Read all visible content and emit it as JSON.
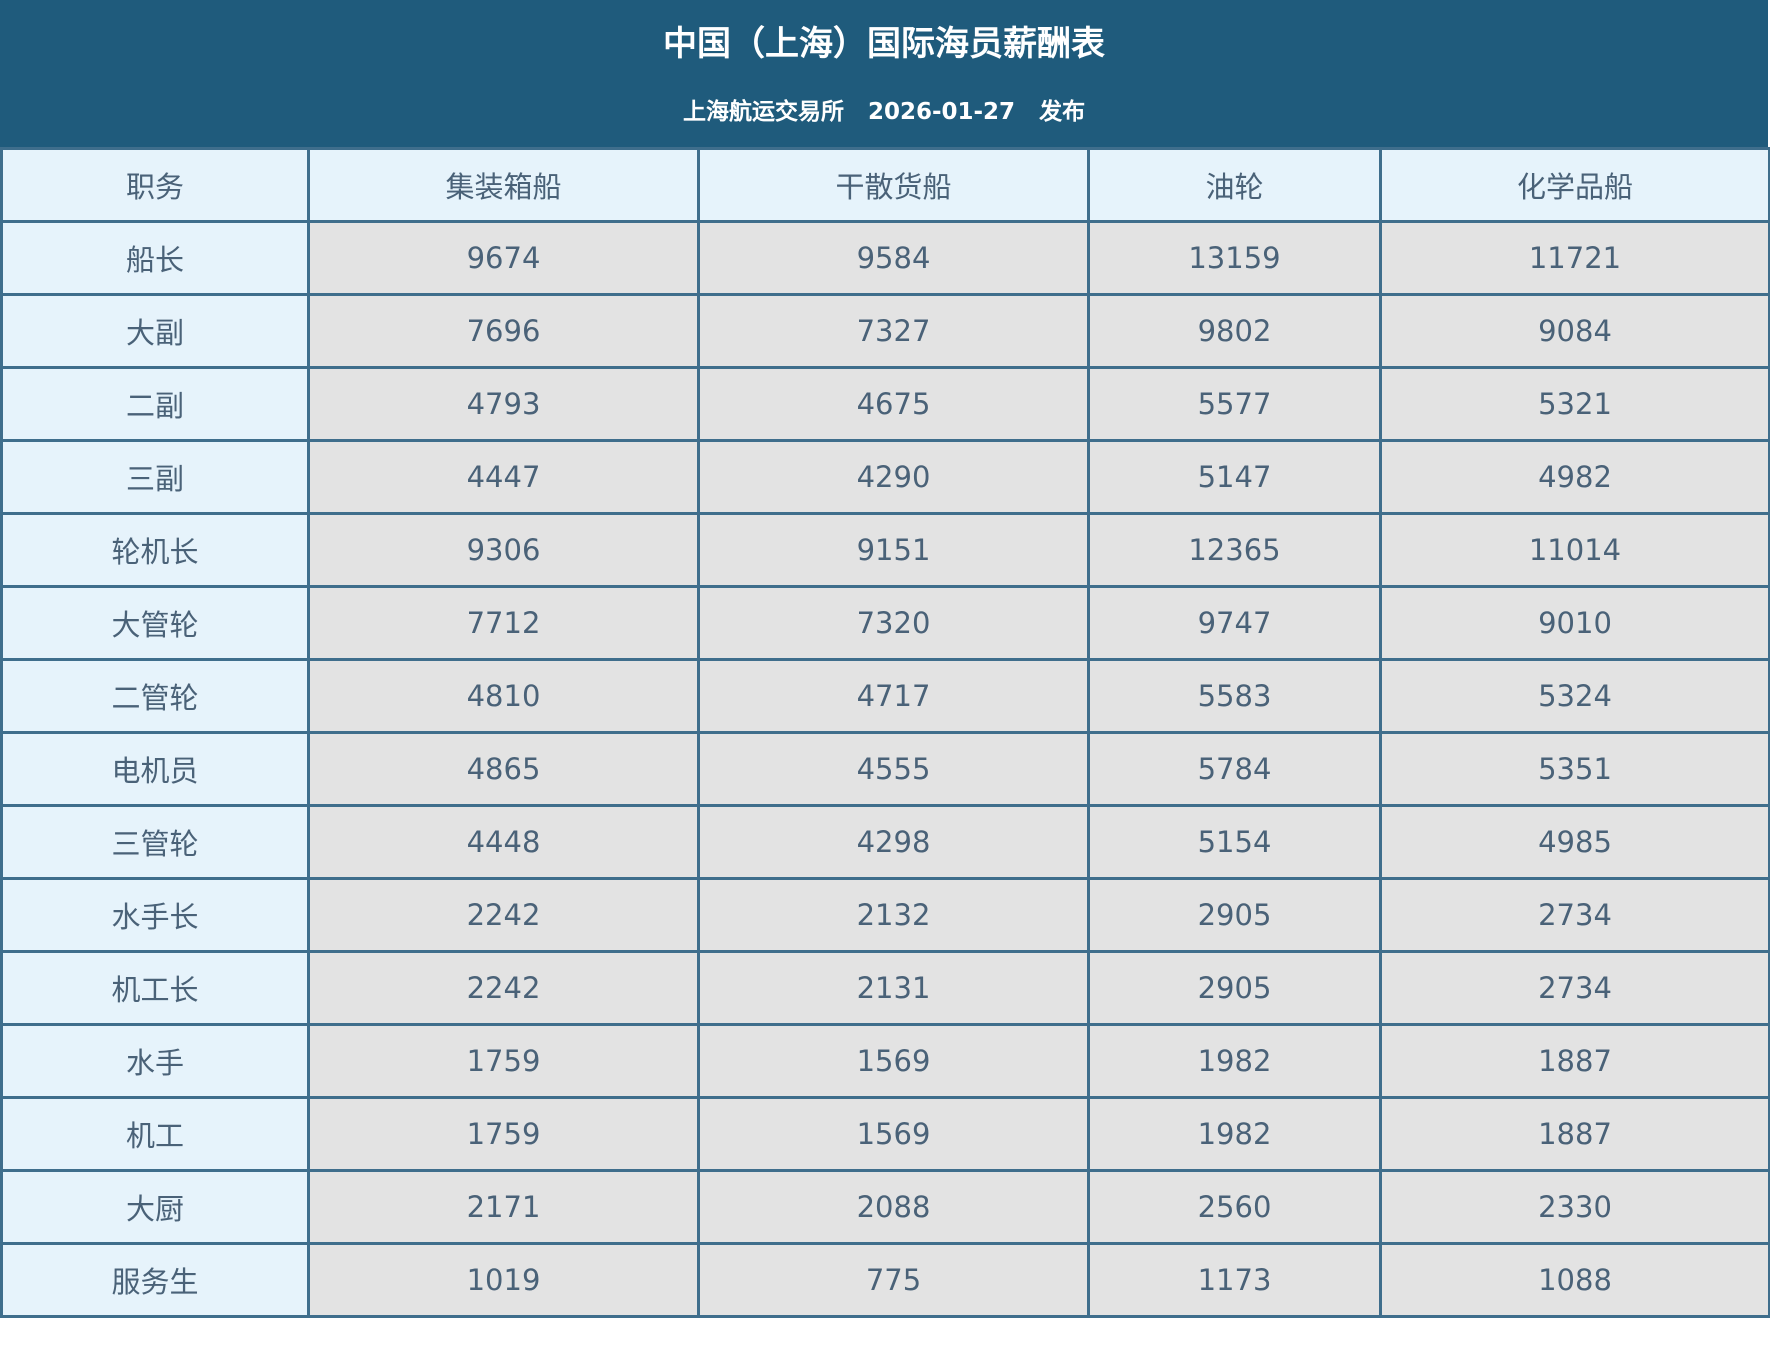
{
  "header": {
    "title": "中国（上海）国际海员薪酬表",
    "publisher": "上海航运交易所",
    "date": "2026-01-27",
    "action": "发布"
  },
  "table": {
    "columns": [
      "职务",
      "集装箱船",
      "干散货船",
      "油轮",
      "化学品船"
    ],
    "rows": [
      [
        "船长",
        9674,
        9584,
        13159,
        11721
      ],
      [
        "大副",
        7696,
        7327,
        9802,
        9084
      ],
      [
        "二副",
        4793,
        4675,
        5577,
        5321
      ],
      [
        "三副",
        4447,
        4290,
        5147,
        4982
      ],
      [
        "轮机长",
        9306,
        9151,
        12365,
        11014
      ],
      [
        "大管轮",
        7712,
        7320,
        9747,
        9010
      ],
      [
        "二管轮",
        4810,
        4717,
        5583,
        5324
      ],
      [
        "电机员",
        4865,
        4555,
        5784,
        5351
      ],
      [
        "三管轮",
        4448,
        4298,
        5154,
        4985
      ],
      [
        "水手长",
        2242,
        2132,
        2905,
        2734
      ],
      [
        "机工长",
        2242,
        2131,
        2905,
        2734
      ],
      [
        "水手",
        1759,
        1569,
        1982,
        1887
      ],
      [
        "机工",
        1759,
        1569,
        1982,
        1887
      ],
      [
        "大厨",
        2171,
        2088,
        2560,
        2330
      ],
      [
        "服务生",
        1019,
        775,
        1173,
        1088
      ]
    ]
  }
}
